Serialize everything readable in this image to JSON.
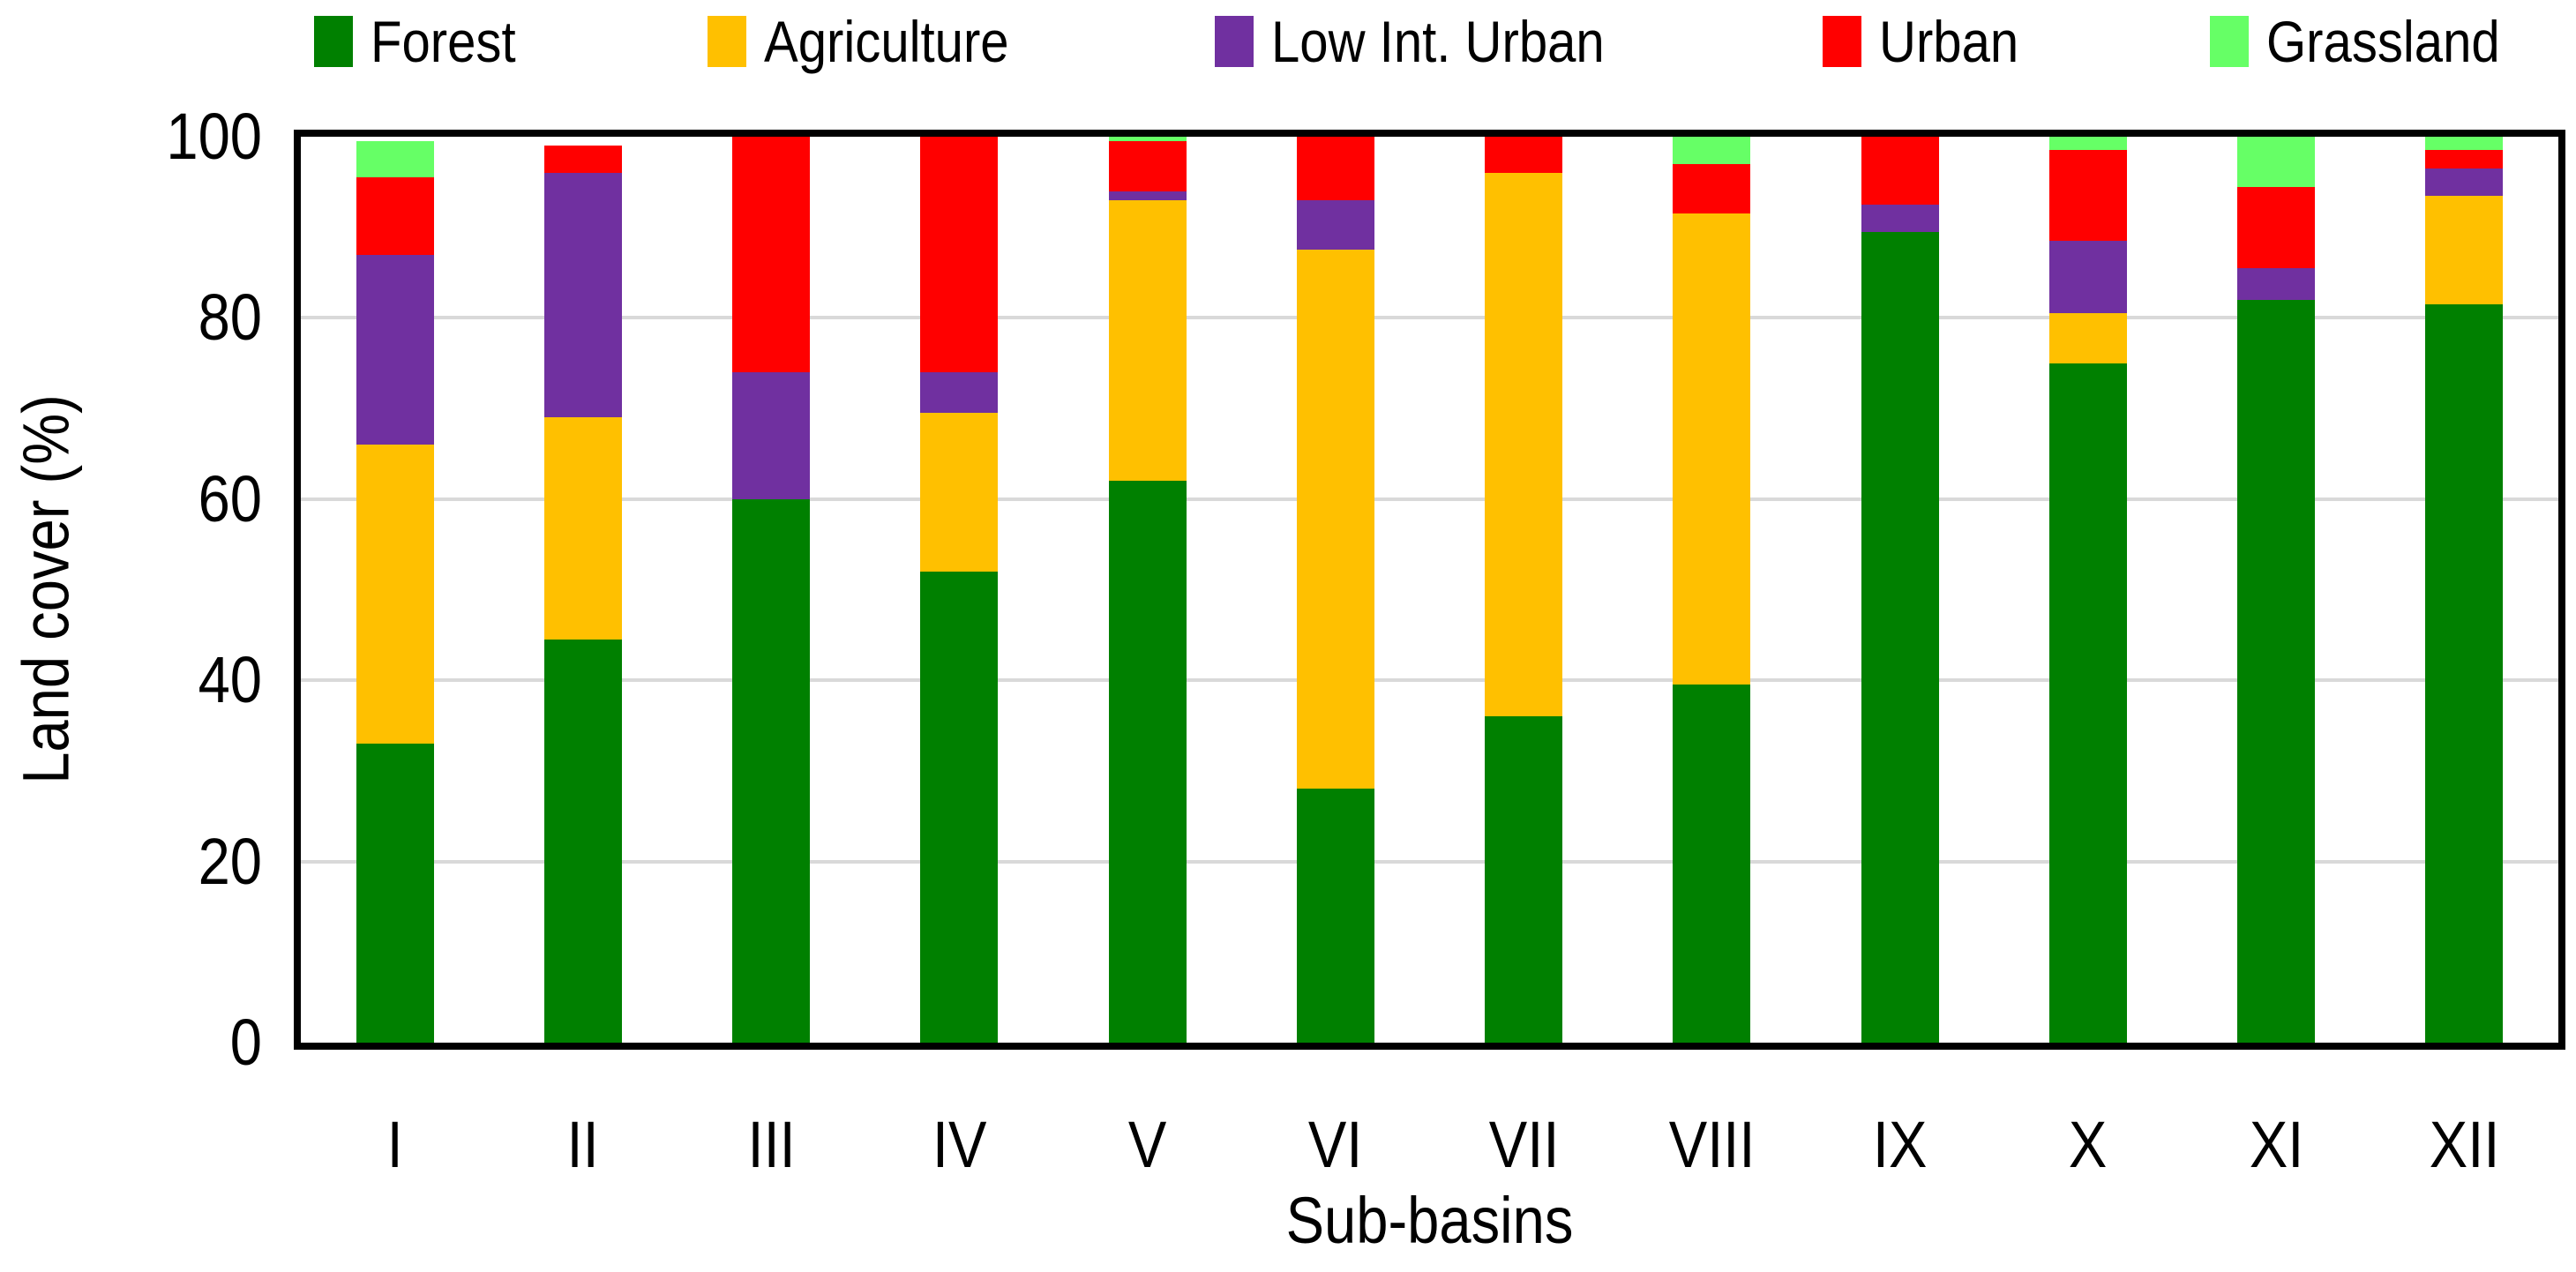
{
  "chart_data": {
    "type": "bar",
    "subtype": "stacked",
    "title": "",
    "xlabel": "Sub-basins",
    "ylabel": "Land cover (%)",
    "ylim": [
      0,
      100
    ],
    "yticks": [
      0,
      20,
      40,
      60,
      80,
      100
    ],
    "grid": true,
    "gridline_color": "#D9D9D9",
    "frame_color": "#000000",
    "legend_position": "top",
    "categories": [
      "I",
      "II",
      "III",
      "IV",
      "V",
      "VI",
      "VII",
      "VIII",
      "IX",
      "X",
      "XI",
      "XII"
    ],
    "series": [
      {
        "name": "Forest",
        "color": "#008000",
        "values": [
          33.0,
          44.5,
          60.0,
          52.0,
          62.0,
          28.0,
          36.0,
          39.5,
          89.5,
          75.0,
          82.0,
          81.5
        ]
      },
      {
        "name": "Agriculture",
        "color": "#FFC000",
        "values": [
          33.0,
          24.5,
          0.0,
          17.5,
          31.0,
          59.5,
          60.0,
          52.0,
          0.0,
          5.5,
          0.0,
          12.0
        ]
      },
      {
        "name": "Low Int. Urban",
        "color": "#7030A0",
        "values": [
          21.0,
          27.0,
          14.0,
          4.5,
          1.0,
          5.5,
          0.0,
          0.0,
          3.0,
          8.0,
          3.5,
          3.0
        ]
      },
      {
        "name": "Urban",
        "color": "#FF0000",
        "values": [
          8.5,
          3.0,
          26.0,
          26.0,
          5.5,
          7.0,
          4.0,
          5.5,
          7.5,
          10.0,
          9.0,
          2.0
        ]
      },
      {
        "name": "Grassland",
        "color": "#66FF66",
        "values": [
          4.0,
          0.0,
          0.0,
          0.0,
          0.5,
          0.0,
          0.0,
          3.0,
          0.0,
          1.5,
          5.5,
          1.5
        ]
      }
    ]
  }
}
